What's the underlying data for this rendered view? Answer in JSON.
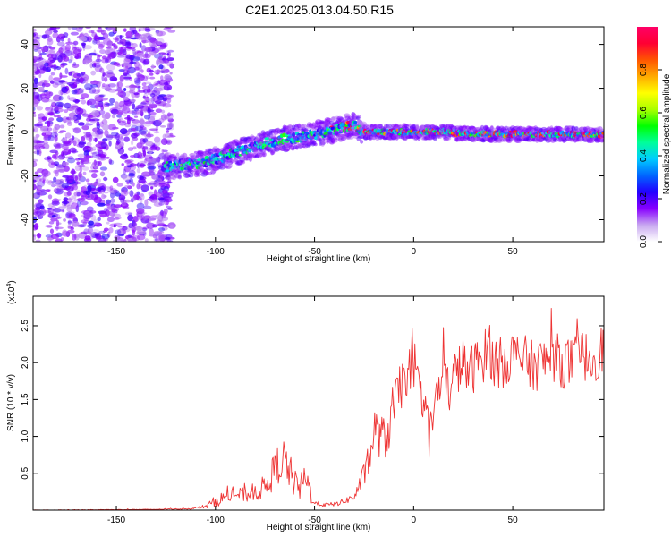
{
  "figure": {
    "title": "C2E1.2025.013.04.50.R15"
  },
  "chart_data": [
    {
      "type": "heatmap",
      "xlabel": "Height of straight line (km)",
      "ylabel": "Frequency (Hz)",
      "xlim": [
        -192,
        96
      ],
      "ylim": [
        -50,
        48
      ],
      "xticks": [
        -150,
        -100,
        -50,
        0,
        50
      ],
      "yticks": [
        -40,
        -20,
        0,
        20,
        40
      ],
      "grid": false,
      "noise_region_x": [
        -192,
        -122
      ],
      "signal_start_x": -125,
      "ridge": {
        "x": [
          -125,
          -115,
          -105,
          -95,
          -85,
          -75,
          -65,
          -55,
          -45,
          -35,
          -30,
          -25,
          -15,
          -5,
          5,
          15,
          30,
          50,
          70,
          96
        ],
        "frequency": [
          -16,
          -15,
          -14,
          -11,
          -8,
          -5,
          -3,
          -2,
          0,
          2,
          3,
          0,
          0,
          0,
          0,
          0,
          -1,
          -1,
          -1,
          -1
        ]
      },
      "colorbar": {
        "label": "Normalized spectral amplitude",
        "range": [
          0,
          1
        ],
        "ticks": [
          "0.0",
          "0.2",
          "0.4",
          "0.6",
          "0.8"
        ],
        "colors": [
          "#ffffff",
          "#c8a8f0",
          "#8800ff",
          "#2200ff",
          "#0066ff",
          "#00ccff",
          "#00ff99",
          "#00ff00",
          "#aaff00",
          "#ffff00",
          "#ffaa00",
          "#ff5500",
          "#ff0033",
          "#ff0066"
        ]
      }
    },
    {
      "type": "line",
      "xlabel": "Height of straight line (km)",
      "ylabel": "SNR (10 * v/v)",
      "yscale_label": "(x10",
      "yscale_exponent": "4",
      "xlim": [
        -192,
        96
      ],
      "ylim": [
        0,
        2.9
      ],
      "xticks": [
        -150,
        -100,
        -50,
        0,
        50
      ],
      "yticks": [
        "0.5",
        "1.0",
        "1.5",
        "2.0",
        "2.5"
      ],
      "line_color": "#ee3333",
      "grid": false,
      "series": [
        {
          "x": [
            -192,
            -130,
            -112,
            -105,
            -100,
            -95,
            -90,
            -85,
            -80,
            -75,
            -72,
            -69,
            -66,
            -63,
            -60,
            -57,
            -55,
            -52,
            -50,
            -47,
            -44,
            -40,
            -35,
            -30,
            -27,
            -24,
            -22,
            -20,
            -17,
            -14,
            -12,
            -10,
            -7,
            -4,
            -2,
            0,
            2,
            4,
            6,
            8,
            10,
            12,
            15,
            18,
            22,
            25,
            28,
            32,
            36,
            38,
            40,
            45,
            50,
            55,
            60,
            65,
            70,
            75,
            80,
            85,
            90,
            96
          ],
          "y": [
            0.0,
            0.01,
            0.02,
            0.05,
            0.12,
            0.18,
            0.22,
            0.2,
            0.25,
            0.3,
            0.45,
            0.6,
            0.7,
            0.55,
            0.35,
            0.3,
            0.45,
            0.25,
            0.1,
            0.08,
            0.07,
            0.08,
            0.12,
            0.18,
            0.35,
            0.55,
            0.7,
            1.1,
            1.0,
            0.95,
            1.2,
            1.4,
            1.6,
            1.9,
            1.85,
            1.75,
            1.7,
            1.6,
            1.4,
            0.95,
            1.3,
            1.6,
            1.75,
            1.65,
            1.9,
            2.0,
            1.85,
            2.0,
            2.1,
            2.3,
            2.0,
            2.0,
            2.1,
            2.05,
            1.95,
            2.0,
            2.1,
            2.0,
            2.0,
            2.1,
            2.05,
            2.2
          ],
          "noise": [
            0.003,
            0.004,
            0.008,
            0.03,
            0.08,
            0.09,
            0.1,
            0.1,
            0.12,
            0.18,
            0.22,
            0.26,
            0.3,
            0.26,
            0.2,
            0.18,
            0.22,
            0.16,
            0.04,
            0.03,
            0.03,
            0.03,
            0.04,
            0.06,
            0.12,
            0.18,
            0.22,
            0.3,
            0.3,
            0.3,
            0.35,
            0.35,
            0.35,
            0.35,
            0.35,
            0.3,
            0.3,
            0.3,
            0.3,
            0.3,
            0.35,
            0.35,
            0.35,
            0.35,
            0.35,
            0.35,
            0.35,
            0.35,
            0.35,
            0.38,
            0.38,
            0.35,
            0.35,
            0.35,
            0.35,
            0.35,
            0.35,
            0.35,
            0.35,
            0.35,
            0.35,
            0.35
          ]
        }
      ]
    }
  ]
}
